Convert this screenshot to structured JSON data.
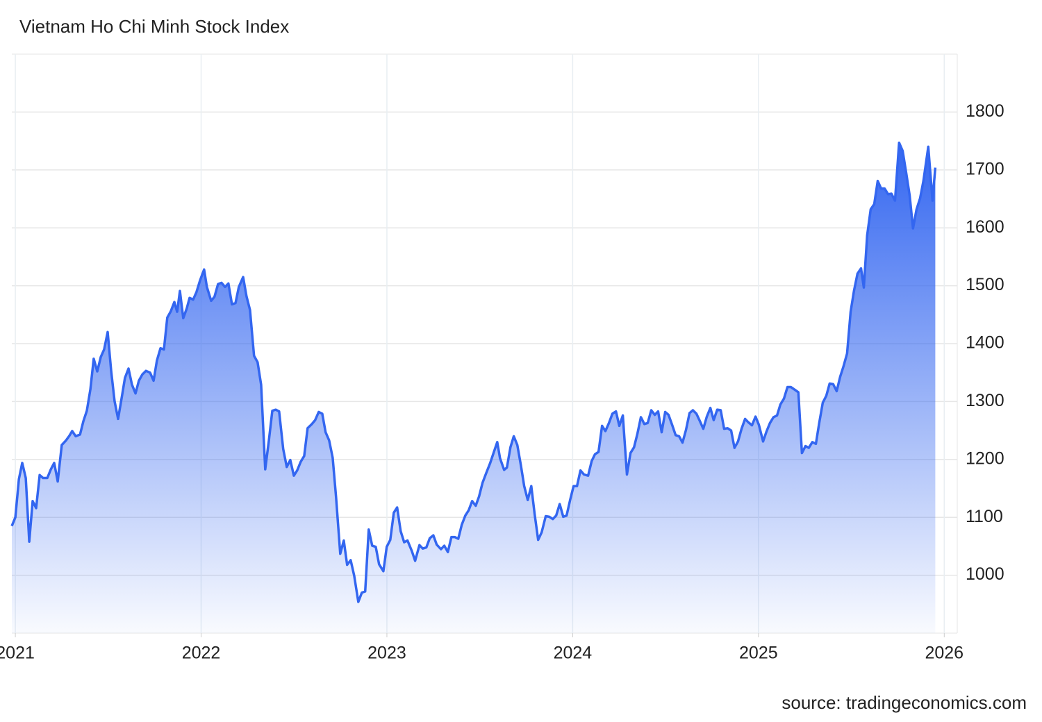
{
  "chart_data": {
    "type": "area",
    "title": "Vietnam Ho Chi Minh Stock Index",
    "source": "source: tradingeconomics.com",
    "color": "#3366f0",
    "grid": true,
    "xlim": [
      2020.981,
      2026.07
    ],
    "xticks": [
      2021,
      2022,
      2023,
      2024,
      2025,
      2026
    ],
    "ylim": [
      900,
      1900
    ],
    "yticks": [
      1000,
      1100,
      1200,
      1300,
      1400,
      1500,
      1600,
      1700,
      1800
    ],
    "x": [
      2020.981,
      2021.0,
      2021.019,
      2021.037,
      2021.056,
      2021.075,
      2021.093,
      2021.112,
      2021.131,
      2021.149,
      2021.172,
      2021.191,
      2021.209,
      2021.228,
      2021.25,
      2021.273,
      2021.291,
      2021.306,
      2021.325,
      2021.348,
      2021.366,
      2021.385,
      2021.404,
      2021.422,
      2021.441,
      2021.46,
      2021.478,
      2021.497,
      2021.516,
      2021.534,
      2021.553,
      2021.572,
      2021.59,
      2021.609,
      2021.628,
      2021.647,
      2021.665,
      2021.684,
      2021.703,
      2021.725,
      2021.744,
      2021.762,
      2021.781,
      2021.8,
      2021.818,
      2021.837,
      2021.856,
      2021.871,
      2021.886,
      2021.904,
      2021.923,
      2021.938,
      2021.957,
      2021.975,
      2021.994,
      2022.016,
      2022.031,
      2022.054,
      2022.072,
      2022.091,
      2022.11,
      2022.129,
      2022.147,
      2022.166,
      2022.185,
      2022.203,
      2022.226,
      2022.244,
      2022.263,
      2022.285,
      2022.304,
      2022.323,
      2022.345,
      2022.364,
      2022.383,
      2022.401,
      2022.42,
      2022.442,
      2022.461,
      2022.48,
      2022.499,
      2022.517,
      2022.536,
      2022.555,
      2022.573,
      2022.596,
      2022.614,
      2022.633,
      2022.652,
      2022.67,
      2022.689,
      2022.708,
      2022.726,
      2022.749,
      2022.768,
      2022.786,
      2022.805,
      2022.824,
      2022.846,
      2022.865,
      2022.883,
      2022.902,
      2022.921,
      2022.94,
      2022.958,
      2022.981,
      2022.999,
      2023.018,
      2023.037,
      2023.055,
      2023.074,
      2023.093,
      2023.111,
      2023.134,
      2023.152,
      2023.175,
      2023.193,
      2023.212,
      2023.231,
      2023.25,
      2023.268,
      2023.291,
      2023.309,
      2023.328,
      2023.347,
      2023.365,
      2023.384,
      2023.403,
      2023.422,
      2023.44,
      2023.459,
      2023.478,
      2023.496,
      2023.515,
      2023.534,
      2023.556,
      2023.575,
      2023.594,
      2023.609,
      2023.631,
      2023.646,
      2023.665,
      2023.683,
      2023.702,
      2023.721,
      2023.739,
      2023.758,
      2023.777,
      2023.795,
      2023.814,
      2023.833,
      2023.855,
      2023.874,
      2023.893,
      2023.911,
      2023.93,
      2023.949,
      2023.967,
      2023.986,
      2024.005,
      2024.023,
      2024.042,
      2024.061,
      2024.083,
      2024.102,
      2024.12,
      2024.139,
      2024.158,
      2024.176,
      2024.195,
      2024.214,
      2024.233,
      2024.251,
      2024.27,
      2024.292,
      2024.311,
      2024.33,
      2024.348,
      2024.367,
      2024.386,
      2024.404,
      2024.423,
      2024.442,
      2024.46,
      2024.479,
      2024.498,
      2024.516,
      2024.535,
      2024.554,
      2024.573,
      2024.591,
      2024.61,
      2024.629,
      2024.647,
      2024.666,
      2024.685,
      2024.703,
      2024.722,
      2024.741,
      2024.759,
      2024.778,
      2024.797,
      2024.815,
      2024.834,
      2024.853,
      2024.871,
      2024.89,
      2024.909,
      2024.928,
      2024.946,
      2024.965,
      2024.984,
      2025.002,
      2025.025,
      2025.043,
      2025.062,
      2025.081,
      2025.1,
      2025.118,
      2025.137,
      2025.156,
      2025.174,
      2025.193,
      2025.215,
      2025.234,
      2025.253,
      2025.271,
      2025.29,
      2025.309,
      2025.327,
      2025.346,
      2025.365,
      2025.383,
      2025.402,
      2025.421,
      2025.44,
      2025.458,
      2025.477,
      2025.496,
      2025.514,
      2025.533,
      2025.552,
      2025.567,
      2025.585,
      2025.604,
      2025.623,
      2025.642,
      2025.66,
      2025.679,
      2025.698,
      2025.716,
      2025.735,
      2025.757,
      2025.776,
      2025.795,
      2025.814,
      2025.832,
      2025.851,
      2025.87,
      2025.888,
      2025.914,
      2025.937,
      2025.952
    ],
    "values": [
      1085,
      1100,
      1166,
      1194,
      1168,
      1058,
      1128,
      1116,
      1173,
      1168,
      1168,
      1183,
      1194,
      1162,
      1225,
      1233,
      1241,
      1249,
      1240,
      1243,
      1266,
      1284,
      1321,
      1374,
      1352,
      1377,
      1390,
      1420,
      1352,
      1301,
      1270,
      1306,
      1341,
      1357,
      1329,
      1314,
      1336,
      1347,
      1353,
      1350,
      1336,
      1371,
      1392,
      1390,
      1445,
      1456,
      1472,
      1455,
      1491,
      1444,
      1461,
      1479,
      1476,
      1489,
      1509,
      1528,
      1498,
      1474,
      1481,
      1503,
      1505,
      1498,
      1504,
      1468,
      1470,
      1498,
      1515,
      1482,
      1458,
      1379,
      1368,
      1329,
      1183,
      1231,
      1284,
      1286,
      1283,
      1218,
      1187,
      1199,
      1172,
      1181,
      1196,
      1206,
      1254,
      1261,
      1268,
      1282,
      1279,
      1247,
      1233,
      1203,
      1136,
      1037,
      1060,
      1018,
      1026,
      999,
      954,
      970,
      972,
      1079,
      1051,
      1049,
      1019,
      1007,
      1049,
      1061,
      1108,
      1117,
      1076,
      1057,
      1060,
      1042,
      1025,
      1052,
      1046,
      1048,
      1064,
      1069,
      1053,
      1045,
      1051,
      1040,
      1066,
      1066,
      1063,
      1087,
      1103,
      1112,
      1128,
      1120,
      1136,
      1160,
      1176,
      1194,
      1212,
      1230,
      1202,
      1182,
      1186,
      1221,
      1240,
      1225,
      1190,
      1154,
      1130,
      1154,
      1106,
      1061,
      1074,
      1102,
      1101,
      1097,
      1103,
      1123,
      1101,
      1103,
      1130,
      1154,
      1154,
      1181,
      1174,
      1172,
      1197,
      1209,
      1213,
      1258,
      1249,
      1263,
      1279,
      1283,
      1258,
      1276,
      1174,
      1211,
      1221,
      1244,
      1273,
      1261,
      1263,
      1285,
      1277,
      1283,
      1247,
      1282,
      1277,
      1260,
      1242,
      1240,
      1229,
      1251,
      1280,
      1285,
      1279,
      1266,
      1253,
      1274,
      1289,
      1268,
      1286,
      1285,
      1253,
      1254,
      1250,
      1220,
      1231,
      1253,
      1270,
      1264,
      1259,
      1274,
      1260,
      1231,
      1248,
      1263,
      1273,
      1276,
      1295,
      1305,
      1325,
      1325,
      1321,
      1316,
      1211,
      1223,
      1220,
      1230,
      1227,
      1263,
      1298,
      1310,
      1331,
      1330,
      1318,
      1343,
      1361,
      1383,
      1455,
      1491,
      1521,
      1530,
      1497,
      1587,
      1632,
      1641,
      1681,
      1668,
      1668,
      1658,
      1659,
      1647,
      1747,
      1733,
      1695,
      1656,
      1599,
      1632,
      1651,
      1681,
      1740,
      1647,
      1704
    ]
  }
}
